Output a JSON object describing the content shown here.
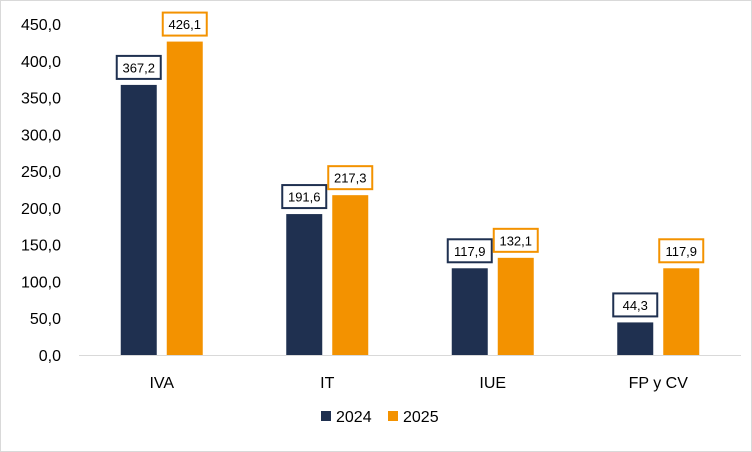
{
  "chart_data": {
    "type": "bar",
    "categories": [
      "IVA",
      "IT",
      "IUE",
      "FP y CV"
    ],
    "series": [
      {
        "name": "2024",
        "values": [
          367.2,
          191.6,
          117.9,
          44.3
        ],
        "labels": [
          "367,2",
          "191,6",
          "117,9",
          "44,3"
        ],
        "color": "#1f3050"
      },
      {
        "name": "2025",
        "values": [
          426.1,
          217.3,
          132.1,
          117.9
        ],
        "labels": [
          "426,1",
          "217,3",
          "132,1",
          "117,9"
        ],
        "color": "#f39200"
      }
    ],
    "ylim": [
      0,
      450
    ],
    "yticks": [
      0,
      50,
      100,
      150,
      200,
      250,
      300,
      350,
      400,
      450
    ],
    "ytick_labels": [
      "0,0",
      "50,0",
      "100,0",
      "150,0",
      "200,0",
      "250,0",
      "300,0",
      "350,0",
      "400,0",
      "450,0"
    ],
    "title": "",
    "xlabel": "",
    "ylabel": "",
    "grid": false,
    "legend_position": "bottom-center"
  }
}
